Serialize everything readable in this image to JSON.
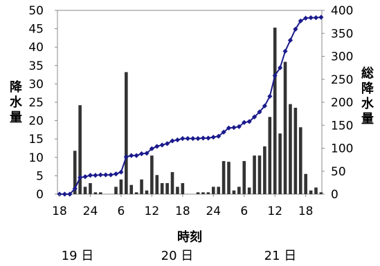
{
  "chart_data": {
    "type": "bar+line",
    "xlabel": "時刻",
    "ylabel_left": "降水量",
    "ylabel_right": "総降水量",
    "y_left": {
      "lim": [
        0,
        50
      ],
      "ticks": [
        "0",
        "5",
        "10",
        "15",
        "20",
        "25",
        "30",
        "35",
        "40",
        "45",
        "50"
      ]
    },
    "y_right": {
      "lim": [
        0,
        400
      ],
      "ticks": [
        "0",
        "50",
        "100",
        "150",
        "200",
        "250",
        "300",
        "350",
        "400"
      ]
    },
    "x_ticks": [
      "18",
      "24",
      "6",
      "12",
      "18",
      "24",
      "6",
      "12",
      "18"
    ],
    "day_labels": [
      "19 日",
      "20 日",
      "21 日"
    ],
    "start_hour": 18,
    "hourly_precip": [
      0,
      0,
      0,
      11.8,
      24.2,
      2,
      3,
      0.5,
      0.5,
      0,
      0,
      2,
      4,
      33.2,
      2.5,
      0.5,
      4,
      1,
      10.5,
      5.2,
      3,
      3,
      6,
      2,
      3,
      0,
      0,
      0.5,
      0.5,
      0.5,
      2,
      2,
      9,
      8.8,
      1,
      2,
      9,
      1.8,
      10.5,
      10.5,
      13,
      21,
      45.3,
      16.5,
      36,
      24.5,
      23.5,
      18.2,
      5.5,
      1,
      1.8,
      0.5
    ],
    "cumulative": [
      0,
      0,
      0,
      12,
      36,
      38,
      41,
      41,
      42,
      42,
      42,
      44,
      48,
      81,
      84,
      84,
      88,
      89,
      99,
      104,
      107,
      110,
      116,
      118,
      121,
      121,
      121,
      121,
      122,
      122,
      124,
      126,
      135,
      144,
      145,
      147,
      156,
      158,
      168,
      179,
      192,
      213,
      258,
      275,
      311,
      335,
      359,
      377,
      383,
      384,
      384,
      385
    ],
    "bar_color": "#333333",
    "line_color": "#1a1a8c",
    "grid": false
  }
}
